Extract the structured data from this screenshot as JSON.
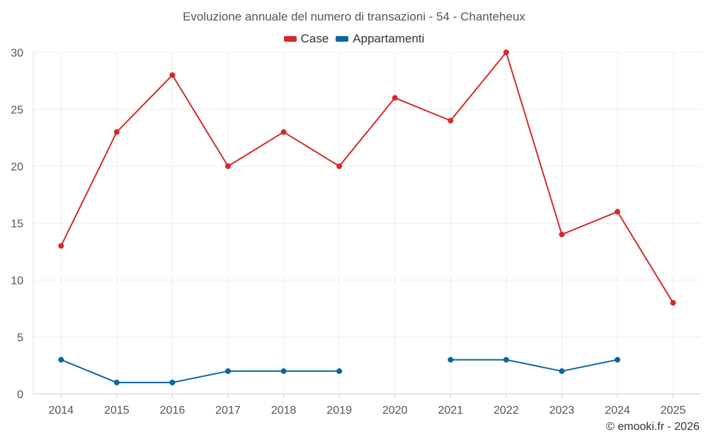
{
  "chart_data": {
    "type": "line",
    "title": "Evoluzione annuale del numero di transazioni - 54 - Chanteheux",
    "categories": [
      "2014",
      "2015",
      "2016",
      "2017",
      "2018",
      "2019",
      "2020",
      "2021",
      "2022",
      "2023",
      "2024",
      "2025"
    ],
    "series": [
      {
        "name": "Case",
        "color": "#d42a2a",
        "values": [
          13,
          23,
          28,
          20,
          23,
          20,
          26,
          24,
          30,
          14,
          16,
          8
        ]
      },
      {
        "name": "Appartamenti",
        "color": "#0b669e",
        "values": [
          3,
          1,
          1,
          2,
          2,
          2,
          null,
          3,
          3,
          2,
          3,
          null
        ]
      }
    ],
    "ylim": [
      0,
      30
    ],
    "yticks": [
      0,
      5,
      10,
      15,
      20,
      25,
      30
    ],
    "xlabel": "",
    "ylabel": "",
    "grid": true,
    "legend_position": "top-center"
  },
  "credit": "© emooki.fr - 2026"
}
